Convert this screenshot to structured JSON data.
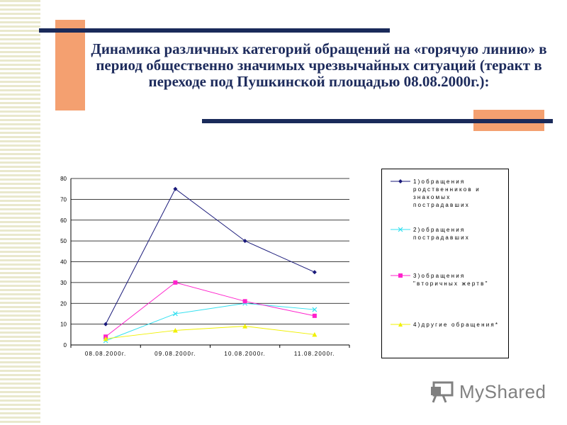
{
  "title": "Динамика различных категорий обращений на «горячую линию» в период общественно значимых чрезвычайных ситуаций (теракт в переходе под Пушкинской площадью 08.08.2000г.):",
  "logo": {
    "text_my": "My",
    "text_shared": "Shared",
    "icon": "projector-board-icon"
  },
  "colors": {
    "stripe": "#e9e8cc",
    "accent_orange": "#f4a070",
    "accent_navy": "#1a2a5a"
  },
  "chart_data": {
    "type": "line",
    "categories": [
      "08.08.2000г.",
      "09.08.2000г.",
      "10.08.2000г.",
      "11.08.2000г."
    ],
    "ylim": [
      0,
      80
    ],
    "yticks": [
      0,
      10,
      20,
      30,
      40,
      50,
      60,
      70,
      80
    ],
    "grid": true,
    "legend_position": "right",
    "series": [
      {
        "name": "1)обращения родственников и знакомых пострадавших",
        "values": [
          10,
          75,
          50,
          35
        ],
        "color": "#1a1a7a",
        "marker": "diamond"
      },
      {
        "name": "2)обращения пострадавших",
        "values": [
          2,
          15,
          20,
          17
        ],
        "color": "#33e0f0",
        "marker": "x"
      },
      {
        "name": "3)обращения \"вторичных жертв\"",
        "values": [
          4,
          30,
          21,
          14
        ],
        "color": "#ff22cc",
        "marker": "square"
      },
      {
        "name": "4)другие обращения*",
        "values": [
          3,
          7,
          9,
          5
        ],
        "color": "#f0f000",
        "marker": "triangle"
      }
    ]
  }
}
